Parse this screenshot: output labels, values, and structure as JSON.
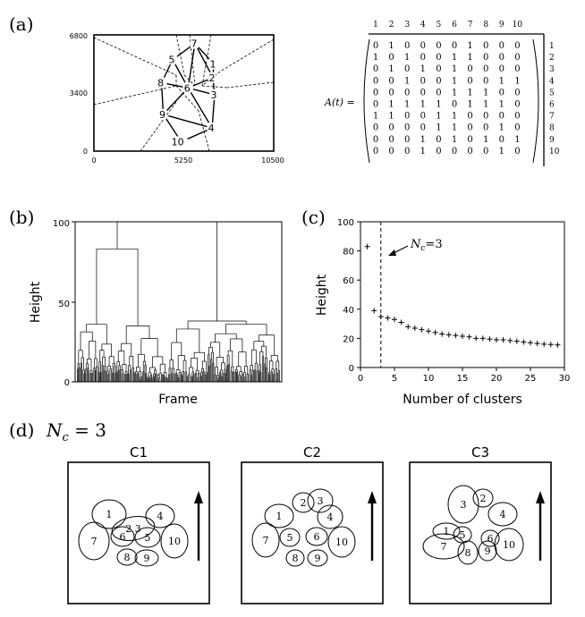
{
  "panels": {
    "a": {
      "label": "(a)",
      "y_ticks": [
        "6800",
        "3400",
        "0"
      ],
      "x_ticks": [
        "0",
        "5250",
        "10500"
      ],
      "nodes": [
        {
          "id": "1",
          "x": 7000,
          "y": 5100
        },
        {
          "id": "2",
          "x": 6950,
          "y": 4300
        },
        {
          "id": "3",
          "x": 7050,
          "y": 3300
        },
        {
          "id": "4",
          "x": 6900,
          "y": 1350
        },
        {
          "id": "5",
          "x": 4600,
          "y": 5350
        },
        {
          "id": "6",
          "x": 5500,
          "y": 3700
        },
        {
          "id": "7",
          "x": 5900,
          "y": 6300
        },
        {
          "id": "8",
          "x": 3950,
          "y": 4000
        },
        {
          "id": "9",
          "x": 4050,
          "y": 2150
        },
        {
          "id": "10",
          "x": 5100,
          "y": 550
        }
      ],
      "matrix_label": "A(t) =",
      "col_headers": [
        "1",
        "2",
        "3",
        "4",
        "5",
        "6",
        "7",
        "8",
        "9",
        "10"
      ],
      "row_headers": [
        "1",
        "2",
        "3",
        "4",
        "5",
        "6",
        "7",
        "8",
        "9",
        "10"
      ],
      "matrix": [
        [
          0,
          1,
          0,
          0,
          0,
          0,
          1,
          0,
          0,
          0
        ],
        [
          1,
          0,
          1,
          0,
          0,
          1,
          1,
          0,
          0,
          0
        ],
        [
          0,
          1,
          0,
          1,
          0,
          1,
          0,
          0,
          0,
          0
        ],
        [
          0,
          0,
          1,
          0,
          0,
          1,
          0,
          0,
          1,
          1
        ],
        [
          0,
          0,
          0,
          0,
          0,
          1,
          1,
          1,
          0,
          0
        ],
        [
          0,
          1,
          1,
          1,
          1,
          0,
          1,
          1,
          1,
          0
        ],
        [
          1,
          1,
          0,
          0,
          1,
          1,
          0,
          0,
          0,
          0
        ],
        [
          0,
          0,
          0,
          0,
          1,
          1,
          0,
          0,
          1,
          0
        ],
        [
          0,
          0,
          0,
          1,
          0,
          1,
          0,
          1,
          0,
          1
        ],
        [
          0,
          0,
          0,
          1,
          0,
          0,
          0,
          0,
          1,
          0
        ]
      ]
    },
    "b": {
      "label": "(b)",
      "xlabel": "Frame",
      "ylabel": "Height",
      "y_ticks": [
        "100",
        "50",
        "0"
      ]
    },
    "c": {
      "label": "(c)",
      "xlabel": "Number of clusters",
      "ylabel": "Height",
      "annotation_main": "N",
      "annotation_sub": "c",
      "annotation_rest": "=3",
      "y_ticks": [
        "100",
        "80",
        "60",
        "40",
        "20",
        "0"
      ],
      "x_ticks": [
        "0",
        "5",
        "10",
        "15",
        "20",
        "25",
        "30"
      ]
    },
    "d": {
      "label": "(d)",
      "title_main": "N",
      "title_sub": "c",
      "title_rest": " = 3",
      "clusters": [
        {
          "name": "C1",
          "ellipses": [
            {
              "id": "2 3",
              "x": 153,
              "y": 27,
              "rx": 24,
              "ry": 13,
              "rot": -10
            },
            {
              "id": "1",
              "x": 46,
              "y": 58,
              "rx": 19,
              "ry": 16,
              "rot": 0
            },
            {
              "id": "4",
              "x": 103,
              "y": 60,
              "rx": 16,
              "ry": 13,
              "rot": 0
            },
            {
              "id": "7",
              "x": 29,
              "y": 88,
              "rx": 17,
              "ry": 21,
              "rot": 0
            },
            {
              "id": "6",
              "x": 61,
              "y": 83,
              "rx": 13,
              "ry": 11,
              "rot": 0
            },
            {
              "id": "5",
              "x": 89,
              "y": 84,
              "rx": 14,
              "ry": 11,
              "rot": 0
            },
            {
              "id": "10",
              "x": 119,
              "y": 88,
              "rx": 15,
              "ry": 19,
              "rot": 0
            },
            {
              "id": "8",
              "x": 66,
              "y": 106,
              "rx": 11,
              "ry": 9,
              "rot": 0
            },
            {
              "id": "9",
              "x": 88,
              "y": 107,
              "rx": 13,
              "ry": 9,
              "rot": 0
            }
          ]
        },
        {
          "name": "C2",
          "ellipses": [
            {
              "id": "2",
              "x": 69,
              "y": 45,
              "rx": 12,
              "ry": 11,
              "rot": 0
            },
            {
              "id": "3",
              "x": 88,
              "y": 43,
              "rx": 14,
              "ry": 13,
              "rot": 0
            },
            {
              "id": "1",
              "x": 42,
              "y": 60,
              "rx": 16,
              "ry": 13,
              "rot": 0
            },
            {
              "id": "4",
              "x": 99,
              "y": 61,
              "rx": 14,
              "ry": 13,
              "rot": 0
            },
            {
              "id": "7",
              "x": 27,
              "y": 87,
              "rx": 15,
              "ry": 19,
              "rot": 0
            },
            {
              "id": "5",
              "x": 54,
              "y": 84,
              "rx": 11,
              "ry": 10,
              "rot": 0
            },
            {
              "id": "6",
              "x": 84,
              "y": 83,
              "rx": 12,
              "ry": 10,
              "rot": 0
            },
            {
              "id": "10",
              "x": 112,
              "y": 89,
              "rx": 15,
              "ry": 17,
              "rot": 0
            },
            {
              "id": "8",
              "x": 60,
              "y": 107,
              "rx": 10,
              "ry": 9,
              "rot": 0
            },
            {
              "id": "9",
              "x": 85,
              "y": 107,
              "rx": 11,
              "ry": 9,
              "rot": 0
            }
          ]
        },
        {
          "name": "C3",
          "ellipses": [
            {
              "id": "3",
              "x": 60,
              "y": 47,
              "rx": 17,
              "ry": 21,
              "rot": 0
            },
            {
              "id": "2",
              "x": 82,
              "y": 40,
              "rx": 11,
              "ry": 10,
              "rot": 0
            },
            {
              "id": "4",
              "x": 104,
              "y": 58,
              "rx": 16,
              "ry": 13,
              "rot": 0
            },
            {
              "id": "1",
              "x": 41,
              "y": 77,
              "rx": 15,
              "ry": 9,
              "rot": 0
            },
            {
              "id": "5",
              "x": 59,
              "y": 81,
              "rx": 10,
              "ry": 9,
              "rot": 0
            },
            {
              "id": "7",
              "x": 38,
              "y": 94,
              "rx": 23,
              "ry": 14,
              "rot": 0
            },
            {
              "id": "6",
              "x": 90,
              "y": 85,
              "rx": 10,
              "ry": 9,
              "rot": 0
            },
            {
              "id": "10",
              "x": 111,
              "y": 92,
              "rx": 16,
              "ry": 18,
              "rot": 0
            },
            {
              "id": "8",
              "x": 65,
              "y": 101,
              "rx": 11,
              "ry": 13,
              "rot": 0
            },
            {
              "id": "9",
              "x": 87,
              "y": 99,
              "rx": 10,
              "ry": 11,
              "rot": 0
            }
          ]
        }
      ]
    }
  },
  "chart_data": [
    {
      "type": "dendrogram",
      "panel": "b",
      "xlabel": "Frame",
      "ylabel": "Height",
      "ylim": [
        0,
        100
      ],
      "root_height": 100,
      "merges": [
        {
          "height": 100,
          "joins": "left-right"
        },
        {
          "height": 83,
          "joins": "left"
        },
        {
          "height": 38,
          "joins": "right"
        },
        {
          "height": 36,
          "joins": "left-subclusters"
        },
        {
          "height": 35,
          "joins": "right-subclusters"
        }
      ]
    },
    {
      "type": "scatter",
      "panel": "c",
      "xlabel": "Number of clusters",
      "ylabel": "Height",
      "xlim": [
        0,
        30
      ],
      "ylim": [
        0,
        100
      ],
      "x": [
        1,
        2,
        3,
        4,
        5,
        6,
        7,
        8,
        9,
        10,
        11,
        12,
        13,
        14,
        15,
        16,
        17,
        18,
        19,
        20,
        21,
        22,
        23,
        24,
        25,
        26,
        27,
        28,
        29
      ],
      "y": [
        83,
        39,
        35,
        34,
        33,
        31,
        28,
        27,
        26,
        25,
        24,
        23,
        22.5,
        22,
        21.5,
        21,
        20,
        20,
        19.5,
        19,
        19,
        18.5,
        18,
        17.5,
        17,
        16.5,
        16,
        15.8,
        15.5
      ],
      "vline_x": 3,
      "marker": "+",
      "annotation": "N_c=3"
    }
  ]
}
